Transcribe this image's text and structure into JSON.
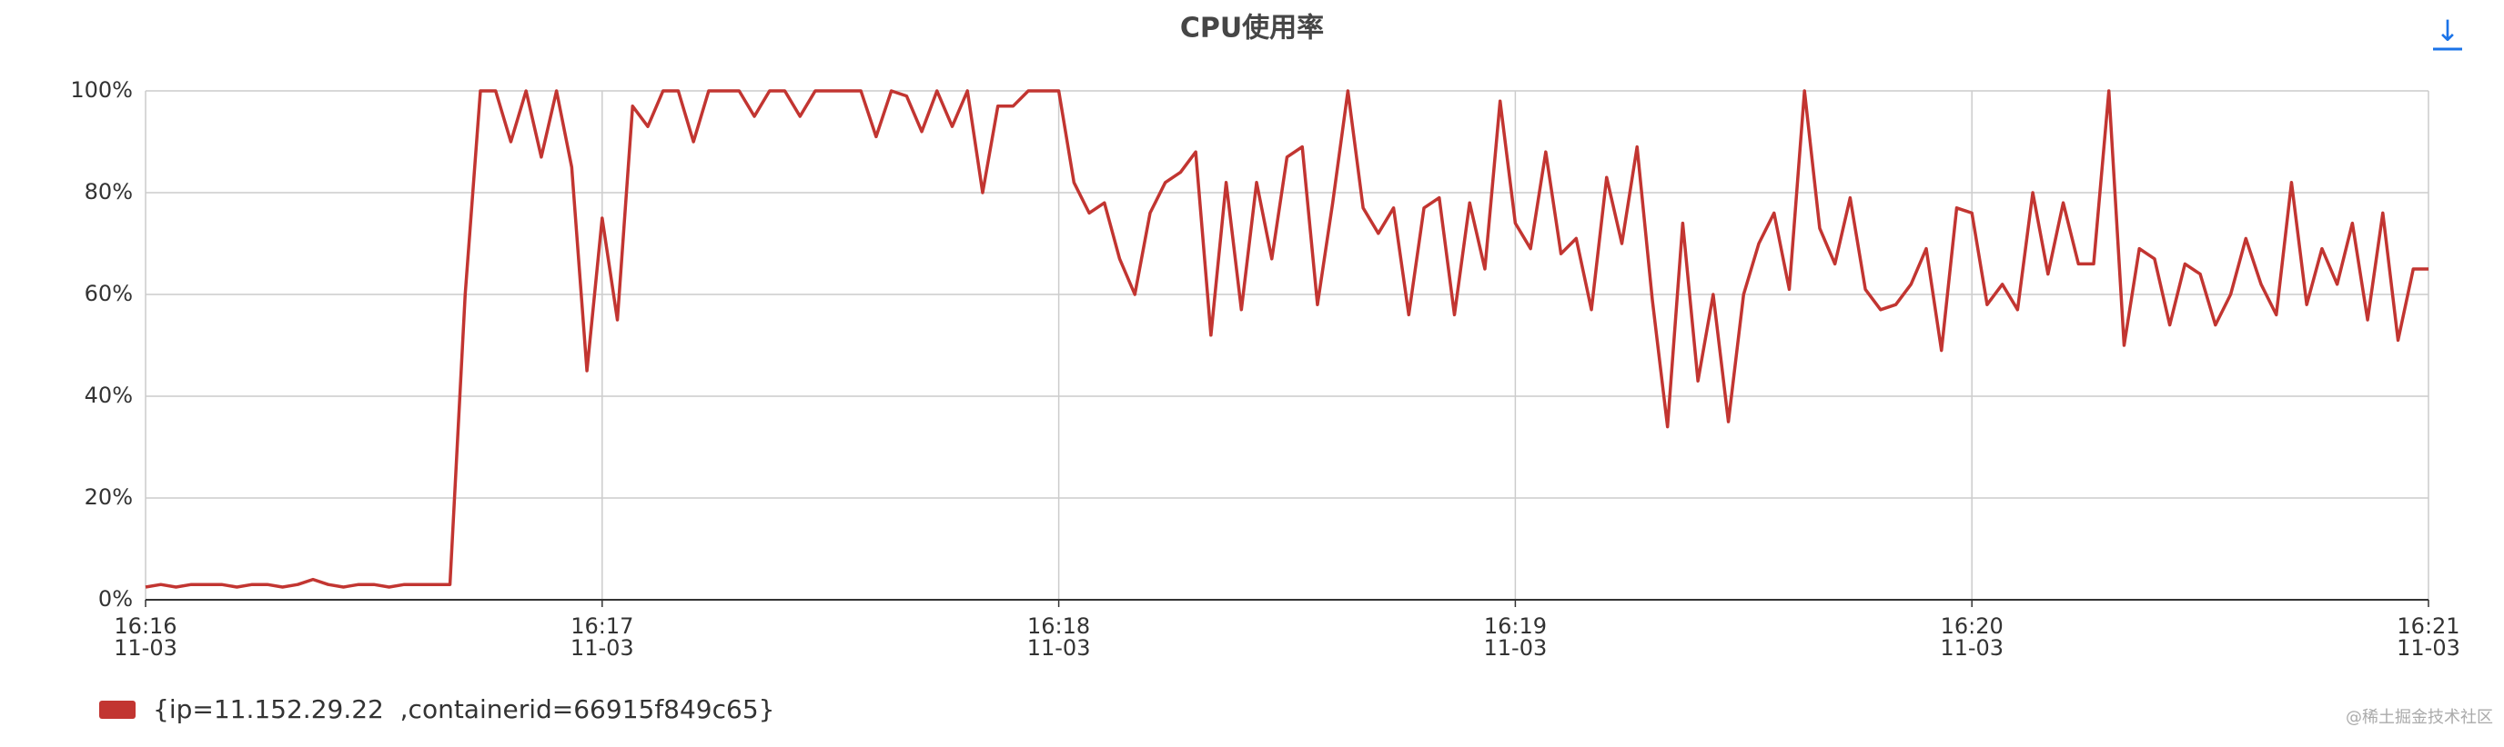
{
  "chart_data": {
    "type": "line",
    "title": "CPU使用率",
    "categories": [
      "16:16",
      null,
      null,
      null,
      null,
      null,
      null,
      null,
      null,
      null,
      null,
      null,
      null,
      null,
      null,
      null,
      null,
      null,
      null,
      null,
      null,
      null,
      null,
      null,
      null,
      null,
      null,
      null,
      null,
      null,
      "16:17",
      null,
      null,
      null,
      null,
      null,
      null,
      null,
      null,
      null,
      null,
      null,
      null,
      null,
      null,
      null,
      null,
      null,
      null,
      null,
      null,
      null,
      null,
      null,
      null,
      null,
      null,
      null,
      null,
      null,
      "16:18",
      null,
      null,
      null,
      null,
      null,
      null,
      null,
      null,
      null,
      null,
      null,
      null,
      null,
      null,
      null,
      null,
      null,
      null,
      null,
      null,
      null,
      null,
      null,
      null,
      null,
      null,
      null,
      null,
      null,
      "16:19",
      null,
      null,
      null,
      null,
      null,
      null,
      null,
      null,
      null,
      null,
      null,
      null,
      null,
      null,
      null,
      null,
      null,
      null,
      null,
      null,
      null,
      null,
      null,
      null,
      null,
      null,
      null,
      null,
      null,
      "16:20",
      null,
      null,
      null,
      null,
      null,
      null,
      null,
      null,
      null,
      null,
      null,
      null,
      null,
      null,
      null,
      null,
      null,
      null,
      null,
      null,
      null,
      null,
      null,
      null,
      null,
      null,
      null,
      null,
      null,
      "16:21"
    ],
    "category_dates": [
      "11-03",
      "11-03",
      "11-03",
      "11-03",
      "11-03",
      "11-03"
    ],
    "series": [
      {
        "name": "{ip=11.152.29.22  ,containerid=66915f849c65}",
        "color": "#c23531",
        "values": [
          2.5,
          3,
          2.5,
          3,
          3,
          3,
          2.5,
          3,
          3,
          2.5,
          3,
          4,
          3,
          2.5,
          3,
          3,
          2.5,
          3,
          3,
          3,
          3,
          60,
          100,
          100,
          90,
          100,
          87,
          100,
          85,
          45,
          75,
          55,
          97,
          93,
          100,
          100,
          90,
          100,
          100,
          100,
          95,
          100,
          100,
          95,
          100,
          100,
          100,
          100,
          91,
          100,
          99,
          92,
          100,
          93,
          100,
          80,
          97,
          97,
          100,
          100,
          100,
          82,
          76,
          78,
          67,
          60,
          76,
          82,
          84,
          88,
          52,
          82,
          57,
          82,
          67,
          87,
          89,
          58,
          78,
          100,
          77,
          72,
          77,
          56,
          77,
          79,
          56,
          78,
          65,
          98,
          74,
          69,
          88,
          68,
          71,
          57,
          83,
          70,
          89,
          59,
          34,
          74,
          43,
          60,
          35,
          60,
          70,
          76,
          61,
          100,
          73,
          66,
          79,
          61,
          57,
          58,
          62,
          69,
          49,
          77,
          76,
          58,
          62,
          57,
          80,
          64,
          78,
          66,
          66,
          100,
          50,
          69,
          67,
          54,
          66,
          64,
          54,
          60,
          71,
          62,
          56,
          82,
          58,
          69,
          62,
          74,
          55,
          76,
          51,
          65,
          65
        ]
      }
    ],
    "ylim": [
      0,
      100
    ],
    "yticks": [
      {
        "value": 0,
        "label": "0%"
      },
      {
        "value": 20,
        "label": "20%"
      },
      {
        "value": 40,
        "label": "40%"
      },
      {
        "value": 60,
        "label": "60%"
      },
      {
        "value": 80,
        "label": "80%"
      },
      {
        "value": 100,
        "label": "100%"
      }
    ],
    "grid": true
  },
  "toolbar": {
    "download": "↓"
  },
  "watermark": "@稀土掘金技术社区"
}
